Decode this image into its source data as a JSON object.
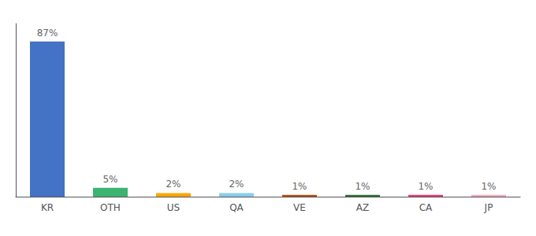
{
  "chart_data": {
    "type": "bar",
    "categories": [
      "KR",
      "OTH",
      "US",
      "QA",
      "VE",
      "AZ",
      "CA",
      "JP"
    ],
    "values": [
      87,
      5,
      2,
      2,
      1,
      1,
      1,
      1
    ],
    "value_labels": [
      "87%",
      "5%",
      "2%",
      "2%",
      "1%",
      "1%",
      "1%",
      "1%"
    ],
    "colors": [
      "#4472c4",
      "#3cb371",
      "#ffa500",
      "#87ceeb",
      "#b8490a",
      "#2d6e2d",
      "#e8376e",
      "#f4a7b9"
    ],
    "data_labels": true,
    "ylim": [
      0,
      97
    ],
    "grid": false,
    "tick_labels": "x"
  }
}
